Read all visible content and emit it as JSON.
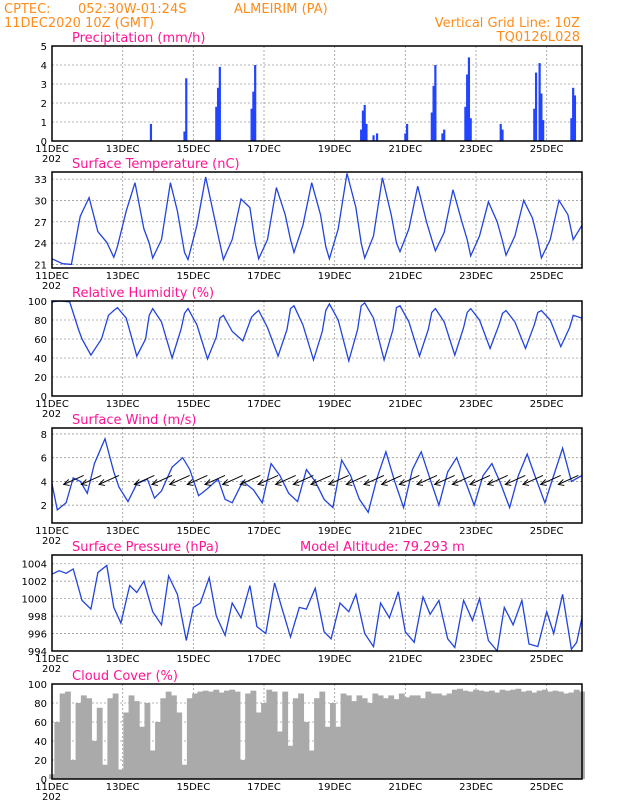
{
  "header": {
    "source": "CPTEC:",
    "coords": "052:30W-01:24S",
    "station": "ALMEIRIM (PA)",
    "run_time": "11DEC2020 10Z (GMT)",
    "grid_note": "Vertical Grid Line: 10Z",
    "model_code": "TQ0126L028"
  },
  "xaxis": {
    "tick_labels": [
      "11DEC",
      "13DEC",
      "15DEC",
      "17DEC",
      "19DEC",
      "21DEC",
      "23DEC",
      "25DEC"
    ],
    "tick_days": [
      0,
      2,
      4,
      6,
      8,
      10,
      12,
      14
    ],
    "range_days": [
      0,
      15
    ],
    "year_label": "202"
  },
  "chart_data": [
    {
      "type": "bar",
      "title": "Precipitation (mm/h)",
      "ylim": [
        0,
        5
      ],
      "yticks": [
        "0",
        "1",
        "2",
        "3",
        "4",
        "5"
      ],
      "x": [
        2.8,
        3.75,
        3.8,
        4.65,
        4.7,
        4.75,
        5.65,
        5.7,
        5.75,
        8.75,
        8.8,
        8.85,
        8.9,
        9.1,
        9.2,
        10.0,
        10.05,
        10.75,
        10.8,
        10.85,
        11.05,
        11.1,
        11.7,
        11.75,
        11.8,
        11.85,
        12.7,
        12.75,
        13.65,
        13.7,
        13.8,
        13.85,
        13.9,
        14.7,
        14.75,
        14.8
      ],
      "values": [
        0.9,
        0.5,
        3.3,
        1.8,
        2.8,
        3.9,
        1.7,
        2.6,
        4.0,
        0.6,
        1.6,
        1.9,
        0.9,
        0.3,
        0.4,
        0.4,
        0.9,
        1.5,
        2.9,
        4.0,
        0.4,
        0.6,
        1.8,
        3.5,
        4.4,
        1.2,
        0.9,
        0.6,
        1.7,
        3.6,
        4.1,
        2.5,
        1.1,
        1.2,
        2.8,
        2.4
      ]
    },
    {
      "type": "line",
      "title": "Surface Temperature (nC)",
      "ylim": [
        20.5,
        34
      ],
      "yticks": [
        "21",
        "24",
        "27",
        "30",
        "33"
      ],
      "ytick_values": [
        21,
        24,
        27,
        30,
        33
      ],
      "x": [
        0,
        0.3,
        0.55,
        0.75,
        0.8,
        1.05,
        1.3,
        1.55,
        1.75,
        1.85,
        2.1,
        2.35,
        2.6,
        2.75,
        2.85,
        3.1,
        3.35,
        3.55,
        3.75,
        3.85,
        4.1,
        4.35,
        4.6,
        4.75,
        4.85,
        5.1,
        5.35,
        5.6,
        5.75,
        5.85,
        6.1,
        6.35,
        6.6,
        6.75,
        6.85,
        7.1,
        7.35,
        7.6,
        7.75,
        7.85,
        8.1,
        8.35,
        8.6,
        8.75,
        8.85,
        9.1,
        9.35,
        9.6,
        9.75,
        9.85,
        10.1,
        10.35,
        10.6,
        10.75,
        10.85,
        11.1,
        11.35,
        11.6,
        11.75,
        11.85,
        12.1,
        12.35,
        12.6,
        12.75,
        12.85,
        13.1,
        13.35,
        13.6,
        13.75,
        13.85,
        14.1,
        14.35,
        14.6,
        14.75,
        15.0
      ],
      "values": [
        21.8,
        21.1,
        21.0,
        26.5,
        27.8,
        30.4,
        25.6,
        24.1,
        22.0,
        23.5,
        28.5,
        32.5,
        26.0,
        24.0,
        21.9,
        24.5,
        32.5,
        28.5,
        22.7,
        21.7,
        26.5,
        33.3,
        27.5,
        24.0,
        21.7,
        24.5,
        30.2,
        29.0,
        24.0,
        21.8,
        24.5,
        31.8,
        28.0,
        24.5,
        22.7,
        26.5,
        32.5,
        28.0,
        23.5,
        21.8,
        26.0,
        33.8,
        29.0,
        24.0,
        21.9,
        25.0,
        33.2,
        28.0,
        24.0,
        22.8,
        26.0,
        32.0,
        27.0,
        24.5,
        22.9,
        25.5,
        31.5,
        27.0,
        24.5,
        22.2,
        25.0,
        29.8,
        27.0,
        24.3,
        22.3,
        25.0,
        30.0,
        27.5,
        24.5,
        21.9,
        24.5,
        30.0,
        28.0,
        24.5,
        26.5
      ]
    },
    {
      "type": "line",
      "title": "Relative Humidity (%)",
      "ylim": [
        0,
        100
      ],
      "yticks": [
        "0",
        "20",
        "40",
        "60",
        "80",
        "100"
      ],
      "ytick_values": [
        0,
        20,
        40,
        60,
        80,
        100
      ],
      "x": [
        0,
        0.2,
        0.5,
        0.75,
        0.85,
        1.1,
        1.4,
        1.6,
        1.75,
        1.85,
        2.1,
        2.4,
        2.65,
        2.75,
        2.85,
        3.1,
        3.4,
        3.65,
        3.75,
        3.85,
        4.1,
        4.4,
        4.65,
        4.75,
        4.85,
        5.1,
        5.4,
        5.65,
        5.75,
        5.85,
        6.1,
        6.4,
        6.65,
        6.75,
        6.85,
        7.1,
        7.4,
        7.65,
        7.75,
        7.85,
        8.1,
        8.4,
        8.65,
        8.75,
        8.85,
        9.1,
        9.4,
        9.65,
        9.75,
        9.85,
        10.1,
        10.4,
        10.65,
        10.75,
        10.85,
        11.1,
        11.4,
        11.65,
        11.75,
        11.85,
        12.1,
        12.4,
        12.65,
        12.75,
        12.85,
        13.1,
        13.4,
        13.65,
        13.75,
        13.85,
        14.1,
        14.4,
        14.65,
        14.75,
        15.0
      ],
      "values": [
        99,
        100,
        99,
        70,
        60,
        43,
        60,
        85,
        90,
        93,
        82,
        42,
        60,
        85,
        92,
        78,
        40,
        70,
        87,
        92,
        75,
        39,
        62,
        82,
        85,
        68,
        58,
        83,
        87,
        90,
        72,
        42,
        70,
        92,
        95,
        75,
        38,
        68,
        90,
        97,
        80,
        37,
        70,
        95,
        98,
        82,
        38,
        70,
        93,
        95,
        78,
        42,
        70,
        88,
        92,
        78,
        43,
        72,
        88,
        92,
        80,
        50,
        75,
        87,
        90,
        78,
        50,
        75,
        88,
        90,
        80,
        52,
        72,
        85,
        82
      ]
    },
    {
      "type": "line",
      "title": "Surface Wind (m/s)",
      "ylim": [
        0.5,
        8.5
      ],
      "yticks": [
        "2",
        "4",
        "6",
        "8"
      ],
      "ytick_values": [
        2,
        4,
        6,
        8
      ],
      "x": [
        0,
        0.15,
        0.4,
        0.6,
        0.8,
        1.0,
        1.2,
        1.5,
        1.75,
        1.9,
        2.15,
        2.4,
        2.7,
        2.9,
        3.1,
        3.4,
        3.7,
        3.9,
        4.15,
        4.4,
        4.7,
        4.9,
        5.1,
        5.4,
        5.7,
        5.95,
        6.2,
        6.45,
        6.7,
        6.95,
        7.2,
        7.45,
        7.7,
        7.95,
        8.2,
        8.45,
        8.7,
        8.95,
        9.2,
        9.45,
        9.7,
        9.95,
        10.2,
        10.45,
        10.7,
        10.95,
        11.2,
        11.45,
        11.7,
        11.95,
        12.2,
        12.45,
        12.7,
        12.95,
        13.2,
        13.45,
        13.7,
        13.95,
        14.2,
        14.45,
        14.7,
        15.0
      ],
      "values": [
        3.8,
        1.6,
        2.2,
        4.3,
        4.0,
        3.0,
        5.5,
        7.6,
        4.8,
        3.5,
        2.3,
        3.8,
        4.2,
        2.6,
        3.2,
        5.2,
        6.0,
        5.0,
        2.8,
        3.4,
        4.2,
        2.5,
        2.2,
        4.0,
        3.3,
        2.2,
        5.5,
        4.5,
        3.0,
        2.3,
        5.0,
        4.0,
        2.5,
        1.8,
        5.8,
        4.5,
        2.5,
        1.4,
        4.3,
        6.5,
        4.0,
        1.8,
        5.0,
        6.5,
        4.2,
        2.0,
        4.8,
        6.0,
        4.0,
        2.0,
        4.5,
        5.5,
        3.8,
        1.8,
        4.5,
        6.3,
        4.2,
        2.2,
        4.5,
        6.8,
        4.0,
        4.5
      ],
      "wind_arrows_at_days": [
        0.5,
        1.0,
        1.5,
        2.5,
        3.0,
        3.5,
        4.0,
        4.5,
        5.0,
        5.5,
        6.0,
        6.5,
        7.0,
        7.5,
        8.0,
        8.5,
        9.0,
        9.5,
        10.0,
        10.5,
        11.0,
        11.5,
        12.0,
        12.5,
        13.0,
        13.5,
        14.0,
        14.5
      ]
    },
    {
      "type": "line",
      "title": "Surface Pressure (hPa)",
      "subtitle": "Model Altitude: 79.293  m",
      "ylim": [
        994,
        1005
      ],
      "yticks": [
        "994",
        "996",
        "998",
        "1000",
        "1002",
        "1004"
      ],
      "ytick_values": [
        994,
        996,
        998,
        1000,
        1002,
        1004
      ],
      "x": [
        0,
        0.2,
        0.4,
        0.6,
        0.85,
        1.1,
        1.3,
        1.55,
        1.75,
        1.95,
        2.2,
        2.4,
        2.6,
        2.85,
        3.1,
        3.3,
        3.55,
        3.8,
        4.0,
        4.2,
        4.45,
        4.65,
        4.9,
        5.1,
        5.35,
        5.6,
        5.8,
        6.05,
        6.3,
        6.5,
        6.75,
        7.0,
        7.2,
        7.45,
        7.7,
        7.9,
        8.15,
        8.4,
        8.6,
        8.85,
        9.1,
        9.3,
        9.55,
        9.8,
        10.0,
        10.25,
        10.5,
        10.7,
        10.95,
        11.2,
        11.4,
        11.65,
        11.9,
        12.1,
        12.35,
        12.6,
        12.8,
        13.05,
        13.3,
        13.5,
        13.75,
        14.0,
        14.2,
        14.45,
        14.7,
        14.85,
        15.0
      ],
      "values": [
        1002.8,
        1003.2,
        1002.9,
        1003.4,
        999.8,
        998.8,
        1003.0,
        1003.8,
        999.0,
        997.2,
        1001.5,
        1000.7,
        1002.0,
        998.5,
        997.0,
        1002.6,
        1000.5,
        995.2,
        999.0,
        999.5,
        1002.4,
        998.0,
        995.8,
        999.5,
        997.8,
        1001.5,
        996.8,
        996.0,
        1001.8,
        999.0,
        995.6,
        999.0,
        998.8,
        1001.2,
        996.2,
        995.4,
        999.5,
        998.5,
        1000.5,
        996.0,
        994.5,
        999.5,
        997.8,
        1000.8,
        996.2,
        995.0,
        1000.2,
        998.2,
        999.8,
        995.4,
        994.4,
        999.8,
        997.5,
        1000.0,
        995.2,
        994.0,
        999.0,
        997.0,
        999.8,
        994.8,
        994.5,
        998.5,
        996.0,
        1000.5,
        994.2,
        995.0,
        997.8
      ]
    },
    {
      "type": "area",
      "title": "Cloud Cover (%)",
      "ylim": [
        0,
        100
      ],
      "yticks": [
        "0",
        "20",
        "40",
        "60",
        "80",
        "100"
      ],
      "ytick_values": [
        0,
        20,
        40,
        60,
        80,
        100
      ],
      "x": [
        0,
        0.15,
        0.3,
        0.45,
        0.6,
        0.75,
        0.9,
        1.05,
        1.2,
        1.35,
        1.5,
        1.65,
        1.8,
        1.95,
        2.1,
        2.25,
        2.4,
        2.55,
        2.7,
        2.85,
        3.0,
        3.15,
        3.3,
        3.45,
        3.6,
        3.75,
        3.9,
        4.05,
        4.2,
        4.35,
        4.5,
        4.65,
        4.8,
        4.95,
        5.1,
        5.25,
        5.4,
        5.55,
        5.7,
        5.85,
        6.0,
        6.15,
        6.3,
        6.45,
        6.6,
        6.75,
        6.9,
        7.05,
        7.2,
        7.35,
        7.5,
        7.65,
        7.8,
        7.95,
        8.1,
        8.25,
        8.4,
        8.55,
        8.7,
        8.85,
        9.0,
        9.15,
        9.3,
        9.45,
        9.6,
        9.75,
        9.9,
        10.05,
        10.2,
        10.35,
        10.5,
        10.65,
        10.8,
        10.95,
        11.1,
        11.25,
        11.4,
        11.55,
        11.7,
        11.85,
        12.0,
        12.15,
        12.3,
        12.45,
        12.6,
        12.75,
        12.9,
        13.05,
        13.2,
        13.35,
        13.5,
        13.65,
        13.8,
        13.95,
        14.1,
        14.25,
        14.4,
        14.55,
        14.7,
        14.85,
        15.0
      ],
      "values": [
        5,
        60,
        90,
        92,
        20,
        80,
        88,
        85,
        40,
        75,
        15,
        85,
        90,
        10,
        70,
        88,
        82,
        55,
        80,
        30,
        60,
        85,
        92,
        88,
        70,
        15,
        85,
        90,
        92,
        93,
        92,
        94,
        91,
        93,
        94,
        92,
        20,
        90,
        93,
        70,
        80,
        94,
        92,
        50,
        92,
        35,
        85,
        90,
        60,
        30,
        85,
        92,
        55,
        80,
        55,
        90,
        88,
        82,
        88,
        85,
        80,
        90,
        88,
        85,
        88,
        84,
        90,
        86,
        88,
        88,
        85,
        92,
        90,
        90,
        88,
        90,
        94,
        95,
        93,
        92,
        94,
        93,
        92,
        93,
        91,
        94,
        93,
        94,
        95,
        92,
        93,
        91,
        93,
        94,
        92,
        93,
        92,
        90,
        91,
        94,
        92
      ]
    }
  ]
}
